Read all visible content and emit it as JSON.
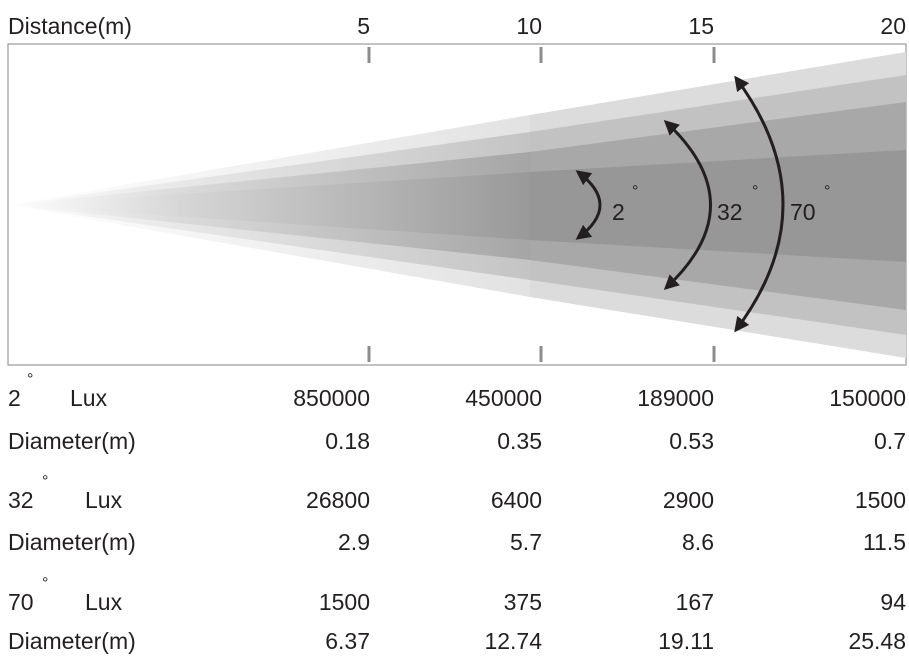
{
  "header": {
    "label": "Distance(m)",
    "distances": [
      "5",
      "10",
      "15",
      "20"
    ]
  },
  "beam": {
    "angles": [
      {
        "value": "2",
        "unit": "°"
      },
      {
        "value": "32",
        "unit": "°"
      },
      {
        "value": "70",
        "unit": "°"
      }
    ]
  },
  "table": {
    "rows": [
      {
        "angle": "2",
        "degree_mark": "°",
        "label": "Lux",
        "values": [
          "850000",
          "450000",
          "189000",
          "150000"
        ]
      },
      {
        "label": "Diameter(m)",
        "values": [
          "0.18",
          "0.35",
          "0.53",
          "0.7"
        ]
      },
      {
        "angle": "32",
        "degree_mark": "°",
        "label": "Lux",
        "values": [
          "26800",
          "6400",
          "2900",
          "1500"
        ]
      },
      {
        "label": "Diameter(m)",
        "values": [
          "2.9",
          "5.7",
          "8.6",
          "11.5"
        ]
      },
      {
        "angle": "70",
        "degree_mark": "°",
        "label": "Lux",
        "values": [
          "1500",
          "375",
          "167",
          "94"
        ]
      },
      {
        "label": "Diameter(m)",
        "values": [
          "6.37",
          "12.74",
          "19.11",
          "25.48"
        ]
      }
    ]
  },
  "colors": {
    "text": "#231f20",
    "tick": "#8c8c8c",
    "frame": "#9a9a9a",
    "arrow": "#231f20"
  }
}
